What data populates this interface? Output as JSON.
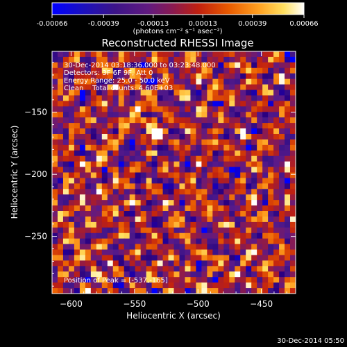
{
  "chart_data": {
    "type": "heatmap",
    "title": "Reconstructed RHESSI Image",
    "xlabel": "Heliocentric X (arcsec)",
    "ylabel": "Heliocentric Y (arcsec)",
    "xlim": [
      -615,
      -423
    ],
    "ylim": [
      -296,
      -101
    ],
    "x_ticks": [
      -600,
      -550,
      -500,
      -450
    ],
    "y_ticks": [
      -150,
      -200,
      -250
    ],
    "colorbar": {
      "range": [
        -0.00066,
        0.00066
      ],
      "tick_values": [
        -0.00066,
        -0.00039,
        -0.00013,
        0.00013,
        0.00039,
        0.00066
      ],
      "tick_labels": [
        "-0.00066",
        "-0.00039",
        "-0.00013",
        "0.00013",
        "0.00039",
        "0.00066"
      ],
      "unit_label": "(photons cm⁻² s⁻¹ asec⁻²)",
      "colormap": [
        "#0000ff",
        "#2a0080",
        "#3c1488",
        "#5a1a8a",
        "#8a1a50",
        "#c02010",
        "#e85a00",
        "#ffa020",
        "#ffe060",
        "#ffffff"
      ]
    },
    "annotations": [
      "30-Dec-2014 03:18:36.000 to 03:23:48.000",
      "Detectors: 3F 6F 9F, Att 0",
      "Energy Range: 25.0 - 50.0 keV",
      "Clean    Total counts: 4.60E+03"
    ],
    "peak": {
      "x": -537,
      "y": -165,
      "label": "Position of Peak = [-537,-165]"
    }
  },
  "footer_timestamp": "30-Dec-2014 05:50"
}
